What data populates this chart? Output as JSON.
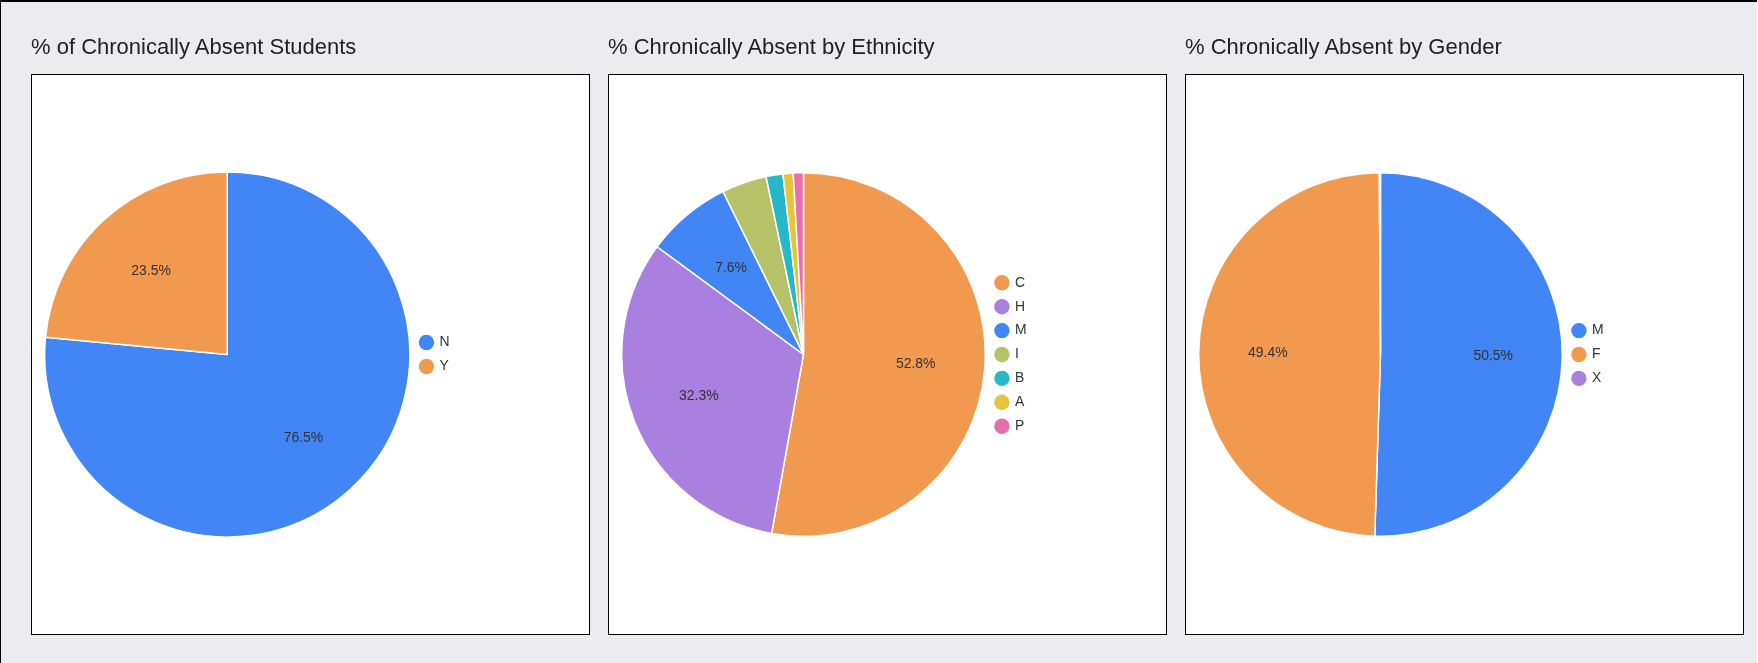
{
  "chart_data": [
    {
      "type": "pie",
      "title": "% of Chronically Absent Students",
      "categories": [
        "N",
        "Y"
      ],
      "values": [
        76.5,
        23.5
      ],
      "colors": [
        "#4285f4",
        "#f19a4f"
      ],
      "value_labels": [
        "76.5%",
        "23.5%"
      ],
      "legend": "right"
    },
    {
      "type": "pie",
      "title": "% Chronically Absent by Ethnicity",
      "categories": [
        "C",
        "H",
        "M",
        "I",
        "B",
        "A",
        "P"
      ],
      "values": [
        52.8,
        32.3,
        7.6,
        4.0,
        1.5,
        0.9,
        0.9
      ],
      "colors": [
        "#f19a4f",
        "#a97fe0",
        "#4285f4",
        "#b5c267",
        "#26b8c9",
        "#e8c43b",
        "#e86fad"
      ],
      "value_labels": [
        "52.8%",
        "32.3%",
        "7.6%",
        null,
        null,
        null,
        null
      ],
      "legend": "right"
    },
    {
      "type": "pie",
      "title": "% Chronically Absent by Gender",
      "categories": [
        "M",
        "F",
        "X"
      ],
      "values": [
        50.5,
        49.4,
        0.1
      ],
      "colors": [
        "#4285f4",
        "#f19a4f",
        "#a97fe0"
      ],
      "value_labels": [
        "50.5%",
        "49.4%",
        null
      ],
      "legend": "right"
    }
  ]
}
